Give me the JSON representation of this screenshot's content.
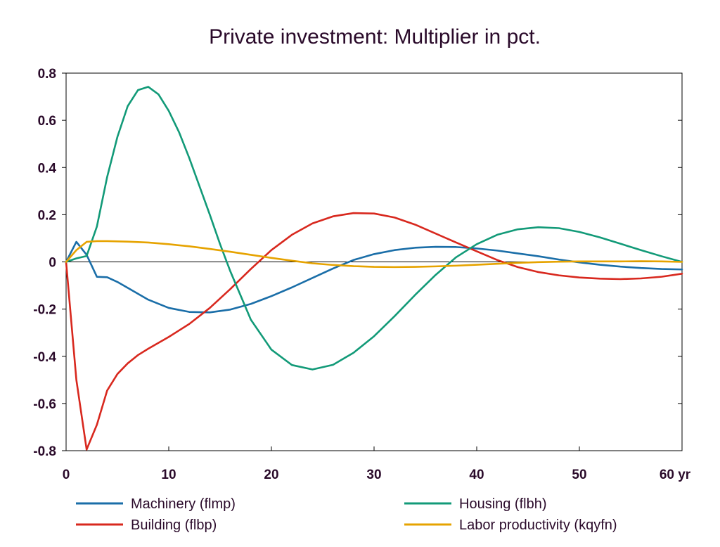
{
  "chart_data": {
    "type": "line",
    "title": "Private investment: Multiplier in pct.",
    "xlabel": "",
    "ylabel": "",
    "xlim": [
      0,
      60
    ],
    "ylim": [
      -0.8,
      0.8
    ],
    "x_ticks": [
      0,
      10,
      20,
      30,
      40,
      50,
      60
    ],
    "x_tick_labels": [
      "0",
      "10",
      "20",
      "30",
      "40",
      "50",
      "60 yr"
    ],
    "y_ticks": [
      0.8,
      0.6,
      0.4,
      0.2,
      0,
      -0.2,
      -0.4,
      -0.6,
      -0.8
    ],
    "y_tick_labels": [
      "0.8",
      "0.6",
      "0.4",
      "0.2",
      "0",
      "-0.2",
      "-0.4",
      "-0.6",
      "-0.8"
    ],
    "zero_line": true,
    "grid": false,
    "legend_position": "bottom",
    "series": [
      {
        "name": "Machinery (flmp)",
        "color": "#1a6ea8",
        "x": [
          0,
          1,
          2,
          3,
          4,
          5,
          6,
          8,
          10,
          12,
          14,
          16,
          18,
          20,
          22,
          24,
          26,
          28,
          30,
          32,
          34,
          36,
          38,
          40,
          42,
          44,
          46,
          48,
          50,
          52,
          54,
          56,
          58,
          60
        ],
        "values": [
          0,
          0.085,
          0.03,
          -0.063,
          -0.065,
          -0.085,
          -0.11,
          -0.16,
          -0.195,
          -0.212,
          -0.214,
          -0.202,
          -0.178,
          -0.145,
          -0.108,
          -0.068,
          -0.028,
          0.008,
          0.033,
          0.05,
          0.06,
          0.064,
          0.063,
          0.057,
          0.048,
          0.036,
          0.024,
          0.01,
          -0.002,
          -0.012,
          -0.02,
          -0.026,
          -0.03,
          -0.032
        ]
      },
      {
        "name": "Building (flbp)",
        "color": "#d8281e",
        "x": [
          0,
          1,
          2,
          3,
          4,
          5,
          6,
          7,
          8,
          10,
          12,
          14,
          16,
          18,
          20,
          22,
          24,
          26,
          28,
          30,
          32,
          34,
          36,
          38,
          40,
          42,
          44,
          46,
          48,
          50,
          52,
          54,
          56,
          58,
          60
        ],
        "values": [
          0,
          -0.5,
          -0.795,
          -0.69,
          -0.545,
          -0.475,
          -0.43,
          -0.395,
          -0.368,
          -0.318,
          -0.263,
          -0.195,
          -0.115,
          -0.03,
          0.05,
          0.115,
          0.163,
          0.193,
          0.207,
          0.205,
          0.188,
          0.158,
          0.12,
          0.082,
          0.045,
          0.008,
          -0.022,
          -0.043,
          -0.057,
          -0.066,
          -0.071,
          -0.073,
          -0.07,
          -0.063,
          -0.05
        ]
      },
      {
        "name": "Housing (flbh)",
        "color": "#129a78",
        "x": [
          0,
          1,
          2,
          3,
          4,
          5,
          6,
          7,
          8,
          9,
          10,
          11,
          12,
          13,
          14,
          15,
          16,
          18,
          20,
          22,
          24,
          26,
          28,
          30,
          32,
          34,
          36,
          38,
          40,
          42,
          44,
          46,
          48,
          50,
          52,
          54,
          56,
          58,
          60
        ],
        "values": [
          0,
          0.015,
          0.025,
          0.15,
          0.36,
          0.53,
          0.66,
          0.728,
          0.742,
          0.71,
          0.64,
          0.55,
          0.44,
          0.32,
          0.2,
          0.075,
          -0.04,
          -0.245,
          -0.372,
          -0.437,
          -0.456,
          -0.436,
          -0.385,
          -0.315,
          -0.23,
          -0.14,
          -0.055,
          0.02,
          0.075,
          0.115,
          0.138,
          0.147,
          0.143,
          0.127,
          0.104,
          0.077,
          0.05,
          0.024,
          0
        ]
      },
      {
        "name": "Labor productivity (kqyfn)",
        "color": "#e6a300",
        "x": [
          0,
          1,
          2,
          3,
          4,
          6,
          8,
          10,
          12,
          14,
          16,
          18,
          20,
          22,
          24,
          26,
          28,
          30,
          32,
          34,
          36,
          38,
          40,
          42,
          44,
          46,
          48,
          50,
          52,
          54,
          56,
          58,
          60
        ],
        "values": [
          0,
          0.05,
          0.085,
          0.088,
          0.088,
          0.086,
          0.082,
          0.075,
          0.066,
          0.055,
          0.043,
          0.03,
          0.017,
          0.005,
          -0.006,
          -0.013,
          -0.018,
          -0.021,
          -0.022,
          -0.021,
          -0.019,
          -0.016,
          -0.012,
          -0.008,
          -0.004,
          -0.001,
          0.001,
          0.002,
          0.002,
          0.002,
          0.003,
          0.002,
          0
        ]
      }
    ]
  }
}
